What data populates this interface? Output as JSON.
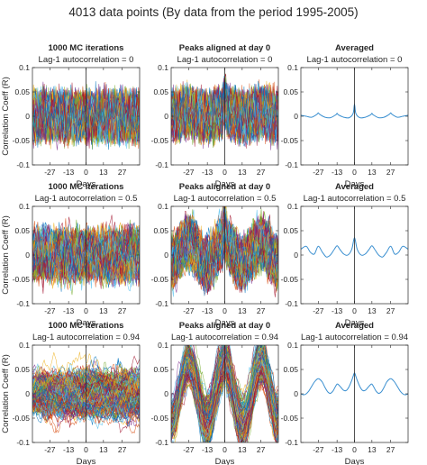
{
  "figure_title": "4013 data points (By data from the period 1995-2005)",
  "chart_data": [
    {
      "type": "line",
      "row": 0,
      "col": 0,
      "title": "1000 MC iterations",
      "subtitle": "Lag-1 autocorrelation = 0",
      "xlabel": "Days",
      "ylabel": "Correlation Coeff (R)",
      "xlim": [
        -40,
        40
      ],
      "ylim": [
        -0.1,
        0.1
      ],
      "yticks": [
        -0.1,
        -0.05,
        0,
        0.05,
        0.1
      ],
      "xticks": [
        -27,
        -13,
        0,
        13,
        27
      ],
      "ytick_labels": [
        "-0.1",
        "-0.05",
        "0",
        "0.05",
        "0.1"
      ],
      "xtick_labels": [
        "-27",
        "-13",
        "0",
        "13",
        "27"
      ],
      "yticks_show": true,
      "lag": 0,
      "mode": "mc",
      "period": 27,
      "amplitude": 0
    },
    {
      "type": "line",
      "row": 0,
      "col": 1,
      "title": "Peaks aligned at day 0",
      "subtitle": "Lag-1 autocorrelation = 0",
      "xlabel": "Days",
      "ylabel": "",
      "xlim": [
        -40,
        40
      ],
      "ylim": [
        -0.1,
        0.1
      ],
      "yticks": [
        -0.1,
        -0.05,
        0,
        0.05,
        0.1
      ],
      "xticks": [
        -27,
        -13,
        0,
        13,
        27
      ],
      "ytick_labels": [
        "-0.1",
        "-0.05",
        "0",
        "0.05",
        "0.1"
      ],
      "xtick_labels": [
        "-27",
        "-13",
        "0",
        "13",
        "27"
      ],
      "yticks_show": false,
      "lag": 0,
      "mode": "aligned",
      "period": 27,
      "amplitude": 0.006
    },
    {
      "type": "line",
      "row": 0,
      "col": 2,
      "title": "Averaged",
      "subtitle": "Lag-1 autocorrelation = 0",
      "xlabel": "Days",
      "ylabel": "",
      "xlim": [
        -40,
        40
      ],
      "ylim": [
        -0.1,
        0.1
      ],
      "yticks": [
        -0.1,
        -0.05,
        0,
        0.05,
        0.1
      ],
      "xticks": [
        -27,
        -13,
        0,
        13,
        27
      ],
      "ytick_labels": [
        "-0.1",
        "-0.05",
        "0",
        "0.05",
        "0.1"
      ],
      "xtick_labels": [
        "-27",
        "-13",
        "0",
        "13",
        "27"
      ],
      "yticks_show": false,
      "mode": "avg",
      "series": [
        {
          "x": [
            -40,
            -36,
            -32,
            -28,
            -27,
            -26,
            -22,
            -18,
            -14,
            -13,
            -12,
            -8,
            -4,
            -1,
            0,
            1,
            4,
            8,
            12,
            13,
            14,
            18,
            22,
            26,
            27,
            28,
            32,
            36,
            40
          ],
          "y": [
            0.002,
            0.0,
            -0.002,
            0.004,
            0.007,
            0.004,
            -0.002,
            -0.003,
            0.003,
            0.006,
            0.003,
            -0.002,
            -0.003,
            0.006,
            0.025,
            0.006,
            -0.003,
            -0.002,
            0.003,
            0.006,
            0.003,
            -0.003,
            -0.002,
            0.004,
            0.007,
            0.004,
            -0.002,
            0.0,
            0.002
          ]
        }
      ]
    },
    {
      "type": "line",
      "row": 1,
      "col": 0,
      "title": "1000 MC iterations",
      "subtitle": "Lag-1 autocorrelation = 0.5",
      "xlabel": "Days",
      "ylabel": "Correlation Coeff (R)",
      "xlim": [
        -40,
        40
      ],
      "ylim": [
        -0.1,
        0.1
      ],
      "yticks": [
        -0.1,
        -0.05,
        0,
        0.05,
        0.1
      ],
      "xticks": [
        -27,
        -13,
        0,
        13,
        27
      ],
      "ytick_labels": [
        "-0.1",
        "-0.05",
        "0",
        "0.05",
        "0.1"
      ],
      "xtick_labels": [
        "-27",
        "-13",
        "0",
        "13",
        "27"
      ],
      "yticks_show": true,
      "lag": 0.5,
      "mode": "mc",
      "period": 27,
      "amplitude": 0
    },
    {
      "type": "line",
      "row": 1,
      "col": 1,
      "title": "Peaks aligned at day 0",
      "subtitle": "Lag-1 autocorrelation = 0.5",
      "xlabel": "Days",
      "ylabel": "",
      "xlim": [
        -40,
        40
      ],
      "ylim": [
        -0.1,
        0.1
      ],
      "yticks": [
        -0.1,
        -0.05,
        0,
        0.05,
        0.1
      ],
      "xticks": [
        -27,
        -13,
        0,
        13,
        27
      ],
      "ytick_labels": [
        "-0.1",
        "-0.05",
        "0",
        "0.05",
        "0.1"
      ],
      "xtick_labels": [
        "-27",
        "-13",
        "0",
        "13",
        "27"
      ],
      "yticks_show": false,
      "lag": 0.5,
      "mode": "aligned",
      "period": 27,
      "amplitude": 0.022
    },
    {
      "type": "line",
      "row": 1,
      "col": 2,
      "title": "Averaged",
      "subtitle": "Lag-1 autocorrelation = 0.5",
      "xlabel": "Days",
      "ylabel": "",
      "xlim": [
        -40,
        40
      ],
      "ylim": [
        -0.1,
        0.1
      ],
      "yticks": [
        -0.1,
        -0.05,
        0,
        0.05,
        0.1
      ],
      "xticks": [
        -27,
        -13,
        0,
        13,
        27
      ],
      "ytick_labels": [
        "-0.1",
        "-0.05",
        "0",
        "0.05",
        "0.1"
      ],
      "xtick_labels": [
        "-27",
        "-13",
        "0",
        "13",
        "27"
      ],
      "yticks_show": false,
      "mode": "avg",
      "series": [
        {
          "x": [
            -40,
            -36,
            -33,
            -30,
            -27,
            -24,
            -21,
            -18,
            -15,
            -13,
            -11,
            -8,
            -5,
            -2,
            0,
            2,
            5,
            8,
            11,
            13,
            15,
            18,
            21,
            24,
            27,
            30,
            33,
            36,
            40
          ],
          "y": [
            0.012,
            0.018,
            0.006,
            0.002,
            0.018,
            0.006,
            -0.004,
            0.0,
            0.012,
            0.019,
            0.012,
            0.002,
            0.0,
            0.012,
            0.036,
            0.012,
            0.0,
            0.002,
            0.012,
            0.019,
            0.012,
            0.0,
            -0.004,
            0.006,
            0.018,
            0.002,
            0.006,
            0.018,
            0.012
          ]
        }
      ]
    },
    {
      "type": "line",
      "row": 2,
      "col": 0,
      "title": "1000 MC iterations",
      "subtitle": "Lag-1 autocorrelation = 0.94",
      "xlabel": "Days",
      "ylabel": "Correlation Coeff (R)",
      "xlim": [
        -40,
        40
      ],
      "ylim": [
        -0.1,
        0.1
      ],
      "yticks": [
        -0.1,
        -0.05,
        0,
        0.05,
        0.1
      ],
      "xticks": [
        -27,
        -13,
        0,
        13,
        27
      ],
      "ytick_labels": [
        "-0.1",
        "-0.05",
        "0",
        "0.05",
        "0.1"
      ],
      "xtick_labels": [
        "-27",
        "-13",
        "0",
        "13",
        "27"
      ],
      "yticks_show": true,
      "lag": 0.94,
      "mode": "mc",
      "period": 27,
      "amplitude": 0
    },
    {
      "type": "line",
      "row": 2,
      "col": 1,
      "title": "Peaks aligned at day 0",
      "subtitle": "Lag-1 autocorrelation = 0.94",
      "xlabel": "Days",
      "ylabel": "",
      "xlim": [
        -40,
        40
      ],
      "ylim": [
        -0.1,
        0.1
      ],
      "yticks": [
        -0.1,
        -0.05,
        0,
        0.05,
        0.1
      ],
      "xticks": [
        -27,
        -13,
        0,
        13,
        27
      ],
      "ytick_labels": [
        "-0.1",
        "-0.05",
        "0",
        "0.05",
        "0.1"
      ],
      "xtick_labels": [
        "-27",
        "-13",
        "0",
        "13",
        "27"
      ],
      "yticks_show": false,
      "lag": 0.94,
      "mode": "aligned",
      "period": 27,
      "amplitude": 0.06
    },
    {
      "type": "line",
      "row": 2,
      "col": 2,
      "title": "Averaged",
      "subtitle": "Lag-1 autocorrelation = 0.94",
      "xlabel": "Days",
      "ylabel": "",
      "xlim": [
        -40,
        40
      ],
      "ylim": [
        -0.1,
        0.1
      ],
      "yticks": [
        -0.1,
        -0.05,
        0,
        0.05,
        0.1
      ],
      "xticks": [
        -27,
        -13,
        0,
        13,
        27
      ],
      "ytick_labels": [
        "-0.1",
        "-0.05",
        "0",
        "0.05",
        "0.1"
      ],
      "xtick_labels": [
        "-27",
        "-13",
        "0",
        "13",
        "27"
      ],
      "yticks_show": false,
      "mode": "avg",
      "series": [
        {
          "x": [
            -40,
            -38,
            -36,
            -34,
            -32,
            -30,
            -28,
            -27,
            -26,
            -24,
            -22,
            -20,
            -18,
            -16,
            -14,
            -13,
            -12,
            -10,
            -8,
            -6,
            -4,
            -2,
            -1,
            0,
            1,
            2,
            4,
            6,
            8,
            10,
            12,
            13,
            14,
            16,
            18,
            20,
            22,
            24,
            26,
            27,
            28,
            30,
            32,
            34,
            36,
            38,
            40
          ],
          "y": [
            0.0,
            -0.002,
            0.0,
            0.006,
            0.015,
            0.024,
            0.03,
            0.031,
            0.03,
            0.024,
            0.013,
            0.004,
            0.001,
            0.006,
            0.016,
            0.02,
            0.019,
            0.013,
            0.007,
            0.007,
            0.015,
            0.028,
            0.036,
            0.043,
            0.036,
            0.028,
            0.015,
            0.007,
            0.007,
            0.013,
            0.019,
            0.02,
            0.016,
            0.006,
            0.001,
            0.004,
            0.013,
            0.024,
            0.03,
            0.031,
            0.03,
            0.024,
            0.015,
            0.006,
            0.0,
            -0.002,
            0.0
          ]
        }
      ]
    }
  ],
  "colors": {
    "mc_palette": [
      "#0072BD",
      "#D95319",
      "#EDB120",
      "#7E2F8E",
      "#77AC30",
      "#4DBEEE",
      "#A2142F"
    ],
    "avg_line": "#3a8fd0",
    "axes": "#262626",
    "zero_line": "#262626"
  }
}
